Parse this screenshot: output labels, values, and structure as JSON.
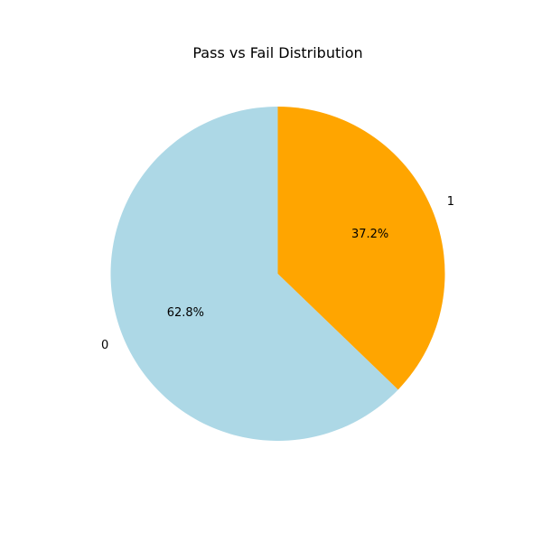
{
  "chart_data": {
    "type": "pie",
    "title": "Pass vs Fail Distribution",
    "categories": [
      "0",
      "1"
    ],
    "values": [
      62.8,
      37.2
    ],
    "value_labels": [
      "62.8%",
      "37.2%"
    ],
    "colors": [
      "#add8e6",
      "#ffa500"
    ],
    "start_angle_deg": 90,
    "direction": "counterclockwise",
    "legend": "none"
  }
}
